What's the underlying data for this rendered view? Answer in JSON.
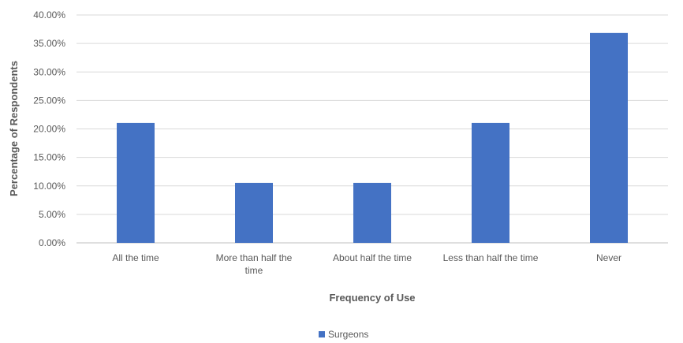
{
  "chart_data": {
    "type": "bar",
    "categories": [
      "All the time",
      "More than half the time",
      "About half the time",
      "Less than half the time",
      "Never"
    ],
    "category_label_lines": [
      [
        "All the time"
      ],
      [
        "More than half the",
        "time"
      ],
      [
        "About half the time"
      ],
      [
        "Less than half the time"
      ],
      [
        "Never"
      ]
    ],
    "series": [
      {
        "name": "Surgeons",
        "values": [
          21.05,
          10.53,
          10.53,
          21.05,
          36.84
        ],
        "color": "#4472C4"
      }
    ],
    "xlabel": "Frequency of Use",
    "ylabel": "Percentage of Respondents",
    "ylim": [
      0,
      40
    ],
    "y_ticks": [
      "0.00%",
      "5.00%",
      "10.00%",
      "15.00%",
      "20.00%",
      "25.00%",
      "30.00%",
      "35.00%",
      "40.00%"
    ],
    "grid": true,
    "legend_position": "bottom"
  }
}
